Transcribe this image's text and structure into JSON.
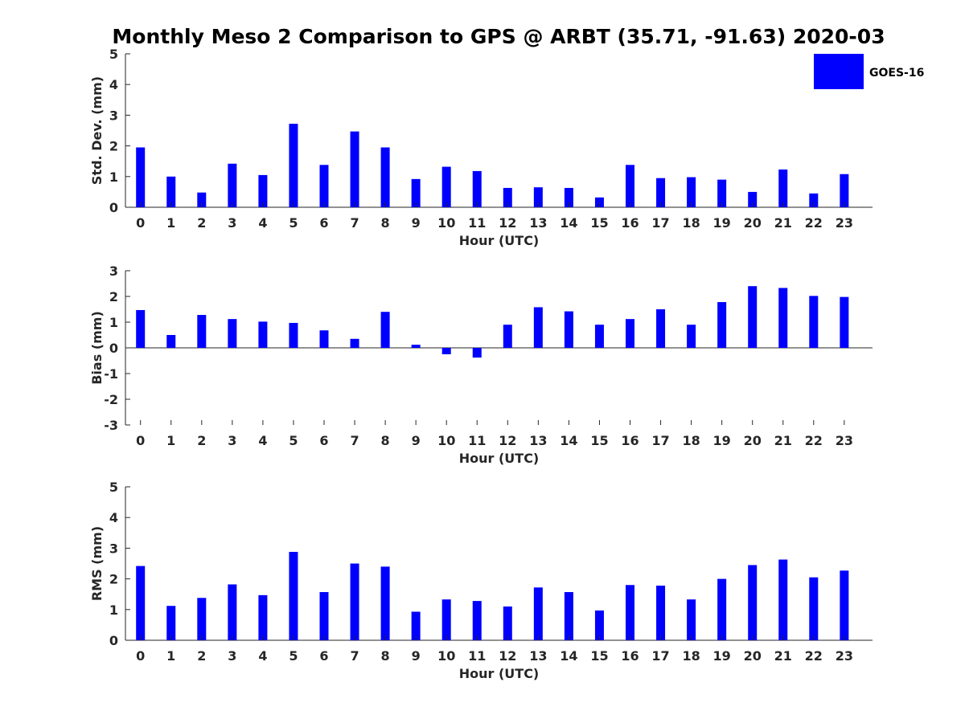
{
  "colors": {
    "bar": "#0000ff",
    "axis": "#262626"
  },
  "chart_data": {
    "title": "Monthly Meso 2 Comparison to GPS @ ARBT (35.71, -91.63) 2020-03",
    "legend": {
      "label": "GOES-16",
      "placement": "top-right"
    },
    "panels": [
      {
        "type": "bar",
        "ylabel": "Std. Dev. (mm)",
        "xlabel": "Hour (UTC)",
        "ylim": [
          0,
          5
        ],
        "yticks": [
          "0",
          "1",
          "2",
          "3",
          "4",
          "5"
        ],
        "categories": [
          "0",
          "1",
          "2",
          "3",
          "4",
          "5",
          "6",
          "7",
          "8",
          "9",
          "10",
          "11",
          "12",
          "13",
          "14",
          "15",
          "16",
          "17",
          "18",
          "19",
          "20",
          "21",
          "22",
          "23"
        ],
        "series": [
          {
            "name": "GOES-16",
            "values": [
              1.95,
              1.0,
              0.48,
              1.42,
              1.05,
              2.72,
              1.38,
              2.47,
              1.95,
              0.92,
              1.32,
              1.18,
              0.63,
              0.65,
              0.63,
              0.32,
              1.38,
              0.95,
              0.98,
              0.9,
              0.5,
              1.23,
              0.45,
              1.08
            ]
          }
        ]
      },
      {
        "type": "bar",
        "ylabel": "Bias (mm)",
        "xlabel": "Hour (UTC)",
        "ylim": [
          -3,
          3
        ],
        "yticks": [
          "-3",
          "-2",
          "-1",
          "0",
          "1",
          "2",
          "3"
        ],
        "categories": [
          "0",
          "1",
          "2",
          "3",
          "4",
          "5",
          "6",
          "7",
          "8",
          "9",
          "10",
          "11",
          "12",
          "13",
          "14",
          "15",
          "16",
          "17",
          "18",
          "19",
          "20",
          "21",
          "22",
          "23"
        ],
        "series": [
          {
            "name": "GOES-16",
            "values": [
              1.47,
              0.5,
              1.28,
              1.12,
              1.02,
              0.97,
              0.68,
              0.35,
              1.4,
              0.12,
              -0.25,
              -0.38,
              0.9,
              1.58,
              1.42,
              0.9,
              1.12,
              1.5,
              0.9,
              1.78,
              2.4,
              2.33,
              2.02,
              1.98
            ]
          }
        ]
      },
      {
        "type": "bar",
        "ylabel": "RMS (mm)",
        "xlabel": "Hour (UTC)",
        "ylim": [
          0,
          5
        ],
        "yticks": [
          "0",
          "1",
          "2",
          "3",
          "4",
          "5"
        ],
        "categories": [
          "0",
          "1",
          "2",
          "3",
          "4",
          "5",
          "6",
          "7",
          "8",
          "9",
          "10",
          "11",
          "12",
          "13",
          "14",
          "15",
          "16",
          "17",
          "18",
          "19",
          "20",
          "21",
          "22",
          "23"
        ],
        "series": [
          {
            "name": "GOES-16",
            "values": [
              2.42,
              1.12,
              1.38,
              1.82,
              1.47,
              2.88,
              1.57,
              2.5,
              2.4,
              0.93,
              1.33,
              1.28,
              1.1,
              1.72,
              1.57,
              0.97,
              1.8,
              1.78,
              1.33,
              2.0,
              2.45,
              2.63,
              2.05,
              2.27
            ]
          }
        ]
      }
    ]
  }
}
